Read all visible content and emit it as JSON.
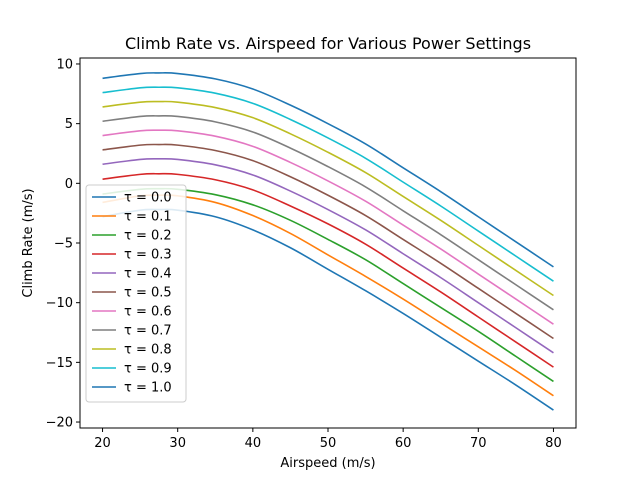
{
  "chart_data": {
    "type": "line",
    "title": "Climb Rate vs. Airspeed for Various Power Settings",
    "xlabel": "Airspeed (m/s)",
    "ylabel": "Climb Rate (m/s)",
    "xlim": [
      17,
      83
    ],
    "ylim": [
      -20.5,
      10.5
    ],
    "xticks": [
      20,
      30,
      40,
      50,
      60,
      70,
      80
    ],
    "yticks": [
      10,
      5,
      0,
      -5,
      -10,
      -15,
      -20
    ],
    "xticklabels": [
      "20",
      "30",
      "40",
      "50",
      "60",
      "70",
      "80"
    ],
    "yticklabels": [
      "10",
      "5",
      "0",
      "−5",
      "−10",
      "−15",
      "−20"
    ],
    "grid": false,
    "legend_position": "lower-left",
    "x": [
      20,
      25,
      27.5,
      30,
      35,
      40,
      45,
      50,
      55,
      60,
      65,
      70,
      75,
      80
    ],
    "series": [
      {
        "name": "τ = 0.0",
        "color": "#1f77b4",
        "values": [
          -2.8,
          -2.25,
          -2.2,
          -2.25,
          -2.8,
          -3.9,
          -5.4,
          -7.2,
          -9.0,
          -10.9,
          -12.9,
          -14.9,
          -16.9,
          -19.0
        ]
      },
      {
        "name": "τ = 0.1",
        "color": "#ff7f0e",
        "values": [
          -1.6,
          -1.05,
          -1.0,
          -1.05,
          -1.6,
          -2.7,
          -4.2,
          -6.0,
          -7.8,
          -9.7,
          -11.7,
          -13.7,
          -15.7,
          -17.8
        ]
      },
      {
        "name": "τ = 0.2",
        "color": "#2ca02c",
        "values": [
          -0.9,
          -0.5,
          -0.45,
          -0.5,
          -0.95,
          -1.8,
          -3.1,
          -4.7,
          -6.4,
          -8.4,
          -10.4,
          -12.4,
          -14.5,
          -16.6
        ]
      },
      {
        "name": "τ = 0.3",
        "color": "#d62728",
        "values": [
          0.35,
          0.75,
          0.8,
          0.75,
          0.3,
          -0.55,
          -1.9,
          -3.4,
          -5.1,
          -7.1,
          -9.1,
          -11.2,
          -13.3,
          -15.4
        ]
      },
      {
        "name": "τ = 0.4",
        "color": "#9467bd",
        "values": [
          1.6,
          2.0,
          2.05,
          2.0,
          1.55,
          0.7,
          -0.65,
          -2.2,
          -3.9,
          -5.9,
          -7.9,
          -10.0,
          -12.1,
          -14.2
        ]
      },
      {
        "name": "τ = 0.5",
        "color": "#8c564b",
        "values": [
          2.8,
          3.2,
          3.25,
          3.2,
          2.75,
          1.9,
          0.55,
          -1.0,
          -2.7,
          -4.7,
          -6.7,
          -8.8,
          -10.9,
          -13.0
        ]
      },
      {
        "name": "τ = 0.6",
        "color": "#e377c2",
        "values": [
          4.0,
          4.4,
          4.45,
          4.4,
          3.95,
          3.1,
          1.75,
          0.2,
          -1.5,
          -3.5,
          -5.5,
          -7.6,
          -9.7,
          -11.8
        ]
      },
      {
        "name": "τ = 0.7",
        "color": "#7f7f7f",
        "values": [
          5.2,
          5.6,
          5.65,
          5.6,
          5.15,
          4.3,
          2.95,
          1.4,
          -0.3,
          -2.3,
          -4.3,
          -6.4,
          -8.5,
          -10.6
        ]
      },
      {
        "name": "τ = 0.8",
        "color": "#bcbd22",
        "values": [
          6.4,
          6.8,
          6.85,
          6.8,
          6.35,
          5.5,
          4.15,
          2.6,
          0.9,
          -1.1,
          -3.1,
          -5.2,
          -7.3,
          -9.4
        ]
      },
      {
        "name": "τ = 0.9",
        "color": "#17becf",
        "values": [
          7.6,
          8.0,
          8.05,
          8.0,
          7.55,
          6.7,
          5.35,
          3.8,
          2.1,
          0.1,
          -1.9,
          -4.0,
          -6.1,
          -8.2
        ]
      },
      {
        "name": "τ = 1.0",
        "color": "#1f77b4",
        "values": [
          8.8,
          9.2,
          9.25,
          9.2,
          8.75,
          7.9,
          6.55,
          5.0,
          3.3,
          1.3,
          -0.7,
          -2.8,
          -4.9,
          -7.0
        ]
      }
    ]
  }
}
